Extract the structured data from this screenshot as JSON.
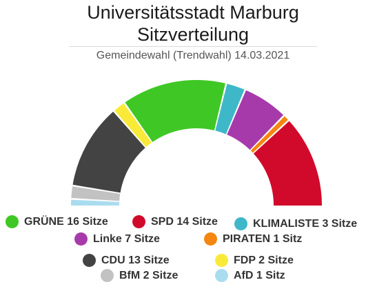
{
  "chart_data": {
    "type": "pie",
    "variant": "parliament-semicircle",
    "title_line1": "Universitätsstadt Marburg",
    "title_line2": "Sitzverteilung",
    "subtitle": "Gemeindewahl (Trendwahl) 14.03.2021",
    "unit": "Sitze",
    "series": [
      {
        "name": "AfD",
        "value": 1,
        "color": "#aadcef",
        "legend_label": "AfD 1 Sitz"
      },
      {
        "name": "BfM",
        "value": 2,
        "color": "#c2c2c2",
        "legend_label": "BfM 2 Sitze"
      },
      {
        "name": "CDU",
        "value": 13,
        "color": "#434343",
        "legend_label": "CDU 13 Sitze"
      },
      {
        "name": "FDP",
        "value": 2,
        "color": "#f9ea39",
        "legend_label": "FDP 2 Sitze"
      },
      {
        "name": "GRÜNE",
        "value": 16,
        "color": "#3fc825",
        "legend_label": "GRÜNE 16 Sitze"
      },
      {
        "name": "KLIMALISTE",
        "value": 3,
        "color": "#3eb8c8",
        "legend_label": "KLIMALISTE 3 Sitze"
      },
      {
        "name": "Linke",
        "value": 7,
        "color": "#a73aab",
        "legend_label": "Linke 7 Sitze"
      },
      {
        "name": "PIRATEN",
        "value": 1,
        "color": "#f5860f",
        "legend_label": "PIRATEN 1 Sitz"
      },
      {
        "name": "SPD",
        "value": 14,
        "color": "#d10a2b",
        "legend_label": "SPD 14 Sitze"
      }
    ],
    "legend_order": [
      "GRÜNE",
      "SPD",
      "KLIMALISTE",
      "Linke",
      "PIRATEN",
      "CDU",
      "FDP",
      "BfM",
      "AfD"
    ],
    "legend_placement": "bottom"
  }
}
